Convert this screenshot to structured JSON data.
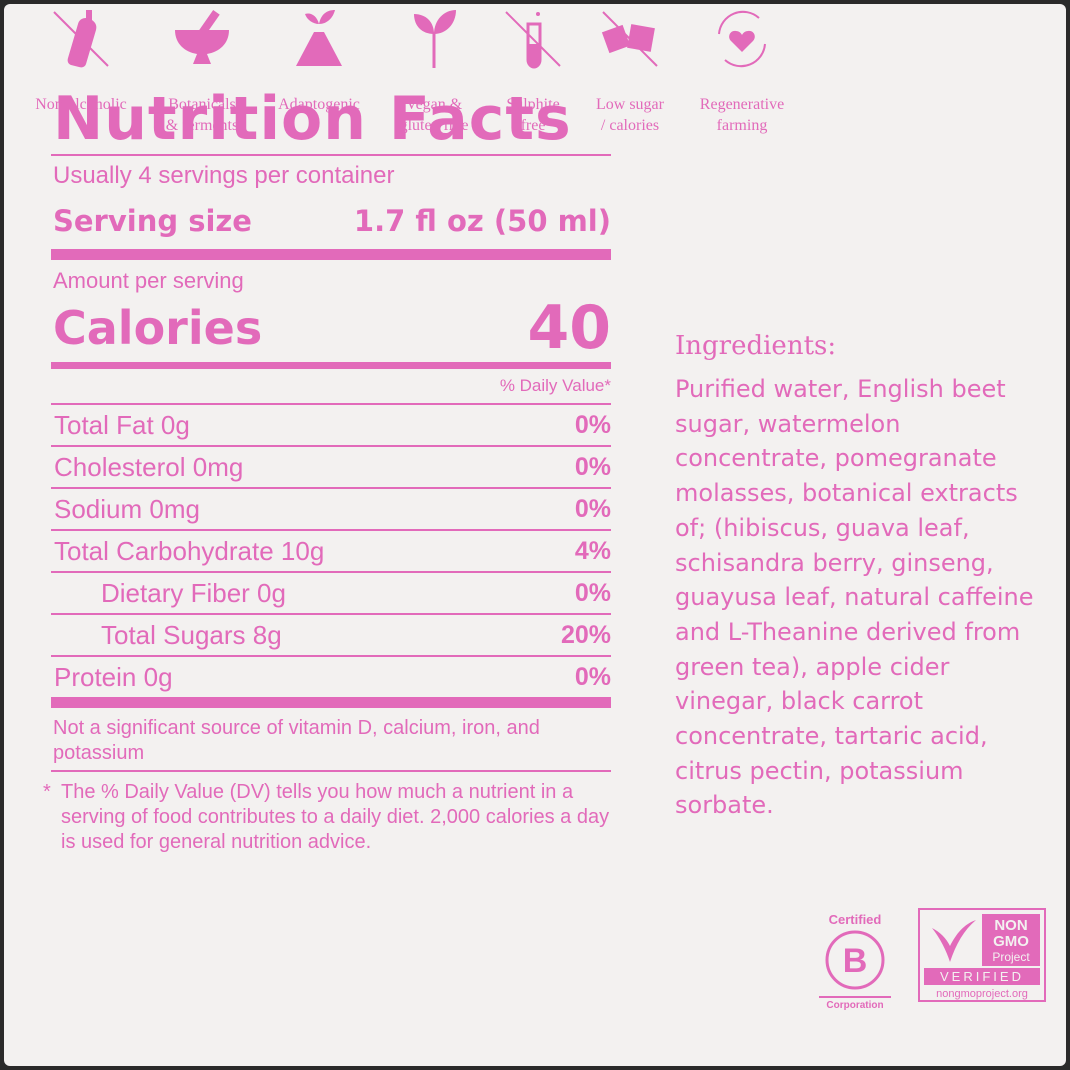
{
  "nutrition": {
    "title": "Nutrition Facts",
    "servings": "Usually 4 servings per container",
    "serving_size_label": "Serving size",
    "serving_size_value": "1.7 fl oz (50 ml)",
    "amount_per_serving": "Amount per serving",
    "calories_label": "Calories",
    "calories_value": "40",
    "daily_value_header": "% Daily Value*",
    "rows": [
      {
        "label": "Total Fat 0g",
        "pct": "0%"
      },
      {
        "label": "Cholesterol 0mg",
        "pct": "0%"
      },
      {
        "label": "Sodium 0mg",
        "pct": "0%"
      },
      {
        "label": "Total Carbohydrate 10g",
        "pct": "4%"
      },
      {
        "label": "Dietary Fiber 0g",
        "pct": "0%"
      },
      {
        "label": "Total Sugars 8g",
        "pct": "20%"
      },
      {
        "label": "Protein 0g",
        "pct": "0%"
      }
    ],
    "footnote_1": "Not a significant source of vitamin D, calcium, iron, and potassium",
    "footnote_2_marker": "*",
    "footnote_2": "The % Daily Value (DV) tells you how much a nutrient in a serving of food contributes to a daily diet. 2,000 calories a day is used for general nutrition advice."
  },
  "ingredients": {
    "title": "Ingredients:",
    "text": "Purified water, English beet sugar, watermelon concentrate, pomegranate molasses, botanical extracts of; (hibiscus, guava leaf, schisandra berry, ginseng, guayusa leaf, natural caffeine and L-Theanine derived from green tea), apple cider vinegar, black carrot concentrate, tartaric acid, citrus pectin, potassium sorbate."
  },
  "badges": [
    {
      "icon": "non-alcoholic-icon",
      "line1": "Non-alcoholic",
      "line2": ""
    },
    {
      "icon": "mortar-pestle-icon",
      "line1": "Botanicals",
      "line2": "& ferments"
    },
    {
      "icon": "sprout-flask-icon",
      "line1": "Adaptogenic",
      "line2": ""
    },
    {
      "icon": "leaf-sprout-icon",
      "line1": "Vegan &",
      "line2": "gluten free"
    },
    {
      "icon": "test-tube-icon",
      "line1": "Sulphite",
      "line2": "free"
    },
    {
      "icon": "sugar-cube-icon",
      "line1": "Low sugar",
      "line2": "/ calories"
    },
    {
      "icon": "heart-cycle-icon",
      "line1": "Regenerative",
      "line2": "farming"
    }
  ],
  "bcorp": {
    "top": "Certified",
    "bottom": "Corporation",
    "letter": "B"
  },
  "nongmo": {
    "line1": "NON",
    "line2": "GMO",
    "line3": "Project",
    "verified": "VERIFIED",
    "url": "nongmoproject.org"
  },
  "colors": {
    "accent": "#e26aba",
    "background": "#f3f1f0",
    "frame": "#2a2a2a"
  }
}
